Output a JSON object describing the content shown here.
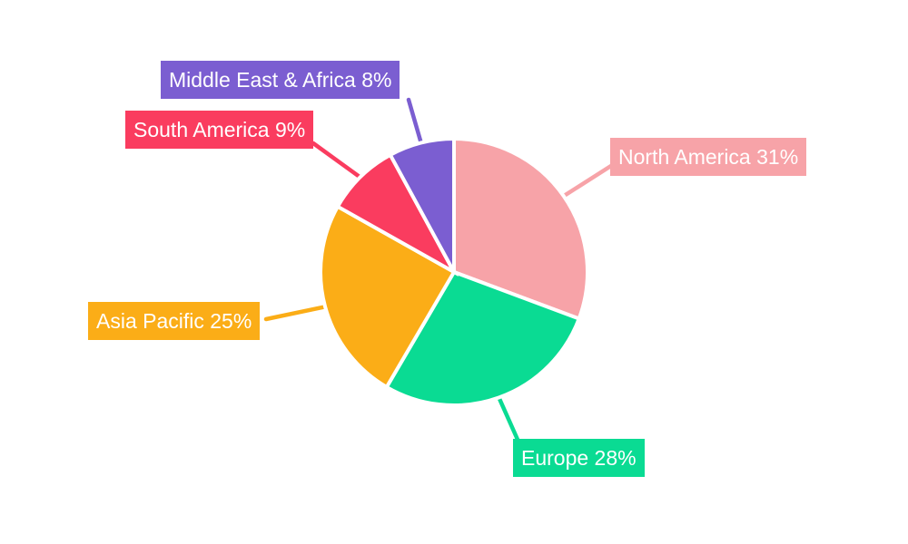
{
  "chart_data": {
    "type": "pie",
    "title": "",
    "legend_position": "outside-callout-labels",
    "direction": "clockwise",
    "start_angle": "top",
    "background_color": "#FFFFFF",
    "label_text_color": "#FFFFFF",
    "slice_gap_color": "#FFFFFF",
    "categories": [
      "North America",
      "Europe",
      "Asia Pacific",
      "South America",
      "Middle East & Africa"
    ],
    "values": [
      31,
      28,
      25,
      9,
      8
    ],
    "slices": [
      {
        "name": "North America",
        "value_pct": 31,
        "label": "North America 31%",
        "color": "#F7A3A8"
      },
      {
        "name": "Europe",
        "value_pct": 28,
        "label": "Europe 28%",
        "color": "#0ADB93"
      },
      {
        "name": "Asia Pacific",
        "value_pct": 25,
        "label": "Asia Pacific 25%",
        "color": "#FBAD17"
      },
      {
        "name": "South America",
        "value_pct": 9,
        "label": "South America 9%",
        "color": "#FA3C5F"
      },
      {
        "name": "Middle East & Africa",
        "value_pct": 8,
        "label": "Middle East & Africa 8%",
        "color": "#7B5ED1"
      }
    ]
  }
}
